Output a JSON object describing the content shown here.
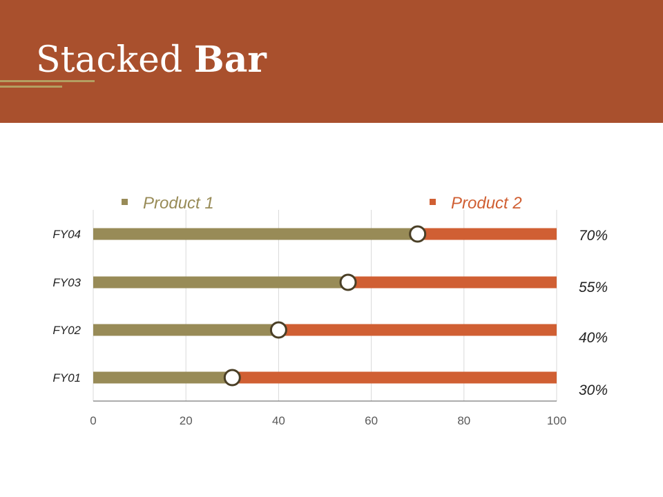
{
  "slide": {
    "title_light": "Stacked ",
    "title_bold": "Bar"
  },
  "colors": {
    "header_bg": "#A9502D",
    "product1": "#988B57",
    "product2": "#D05F33",
    "marker_stroke": "#4A3F26",
    "grid": "#D9D9D9",
    "axis": "#595959"
  },
  "chart_data": {
    "type": "bar",
    "orientation": "horizontal",
    "stacked": true,
    "categories": [
      "FY04",
      "FY03",
      "FY02",
      "FY01"
    ],
    "series": [
      {
        "name": "Product 1",
        "values": [
          70,
          55,
          40,
          30
        ]
      },
      {
        "name": "Product 2",
        "values": [
          30,
          45,
          60,
          70
        ]
      }
    ],
    "data_labels": [
      "70%",
      "55%",
      "40%",
      "30%"
    ],
    "xlim": [
      0,
      100
    ],
    "xticks": [
      "0",
      "20",
      "40",
      "60",
      "80",
      "100"
    ],
    "grid": true,
    "legend_position": "top",
    "markers": "circle at Product 1 end"
  }
}
